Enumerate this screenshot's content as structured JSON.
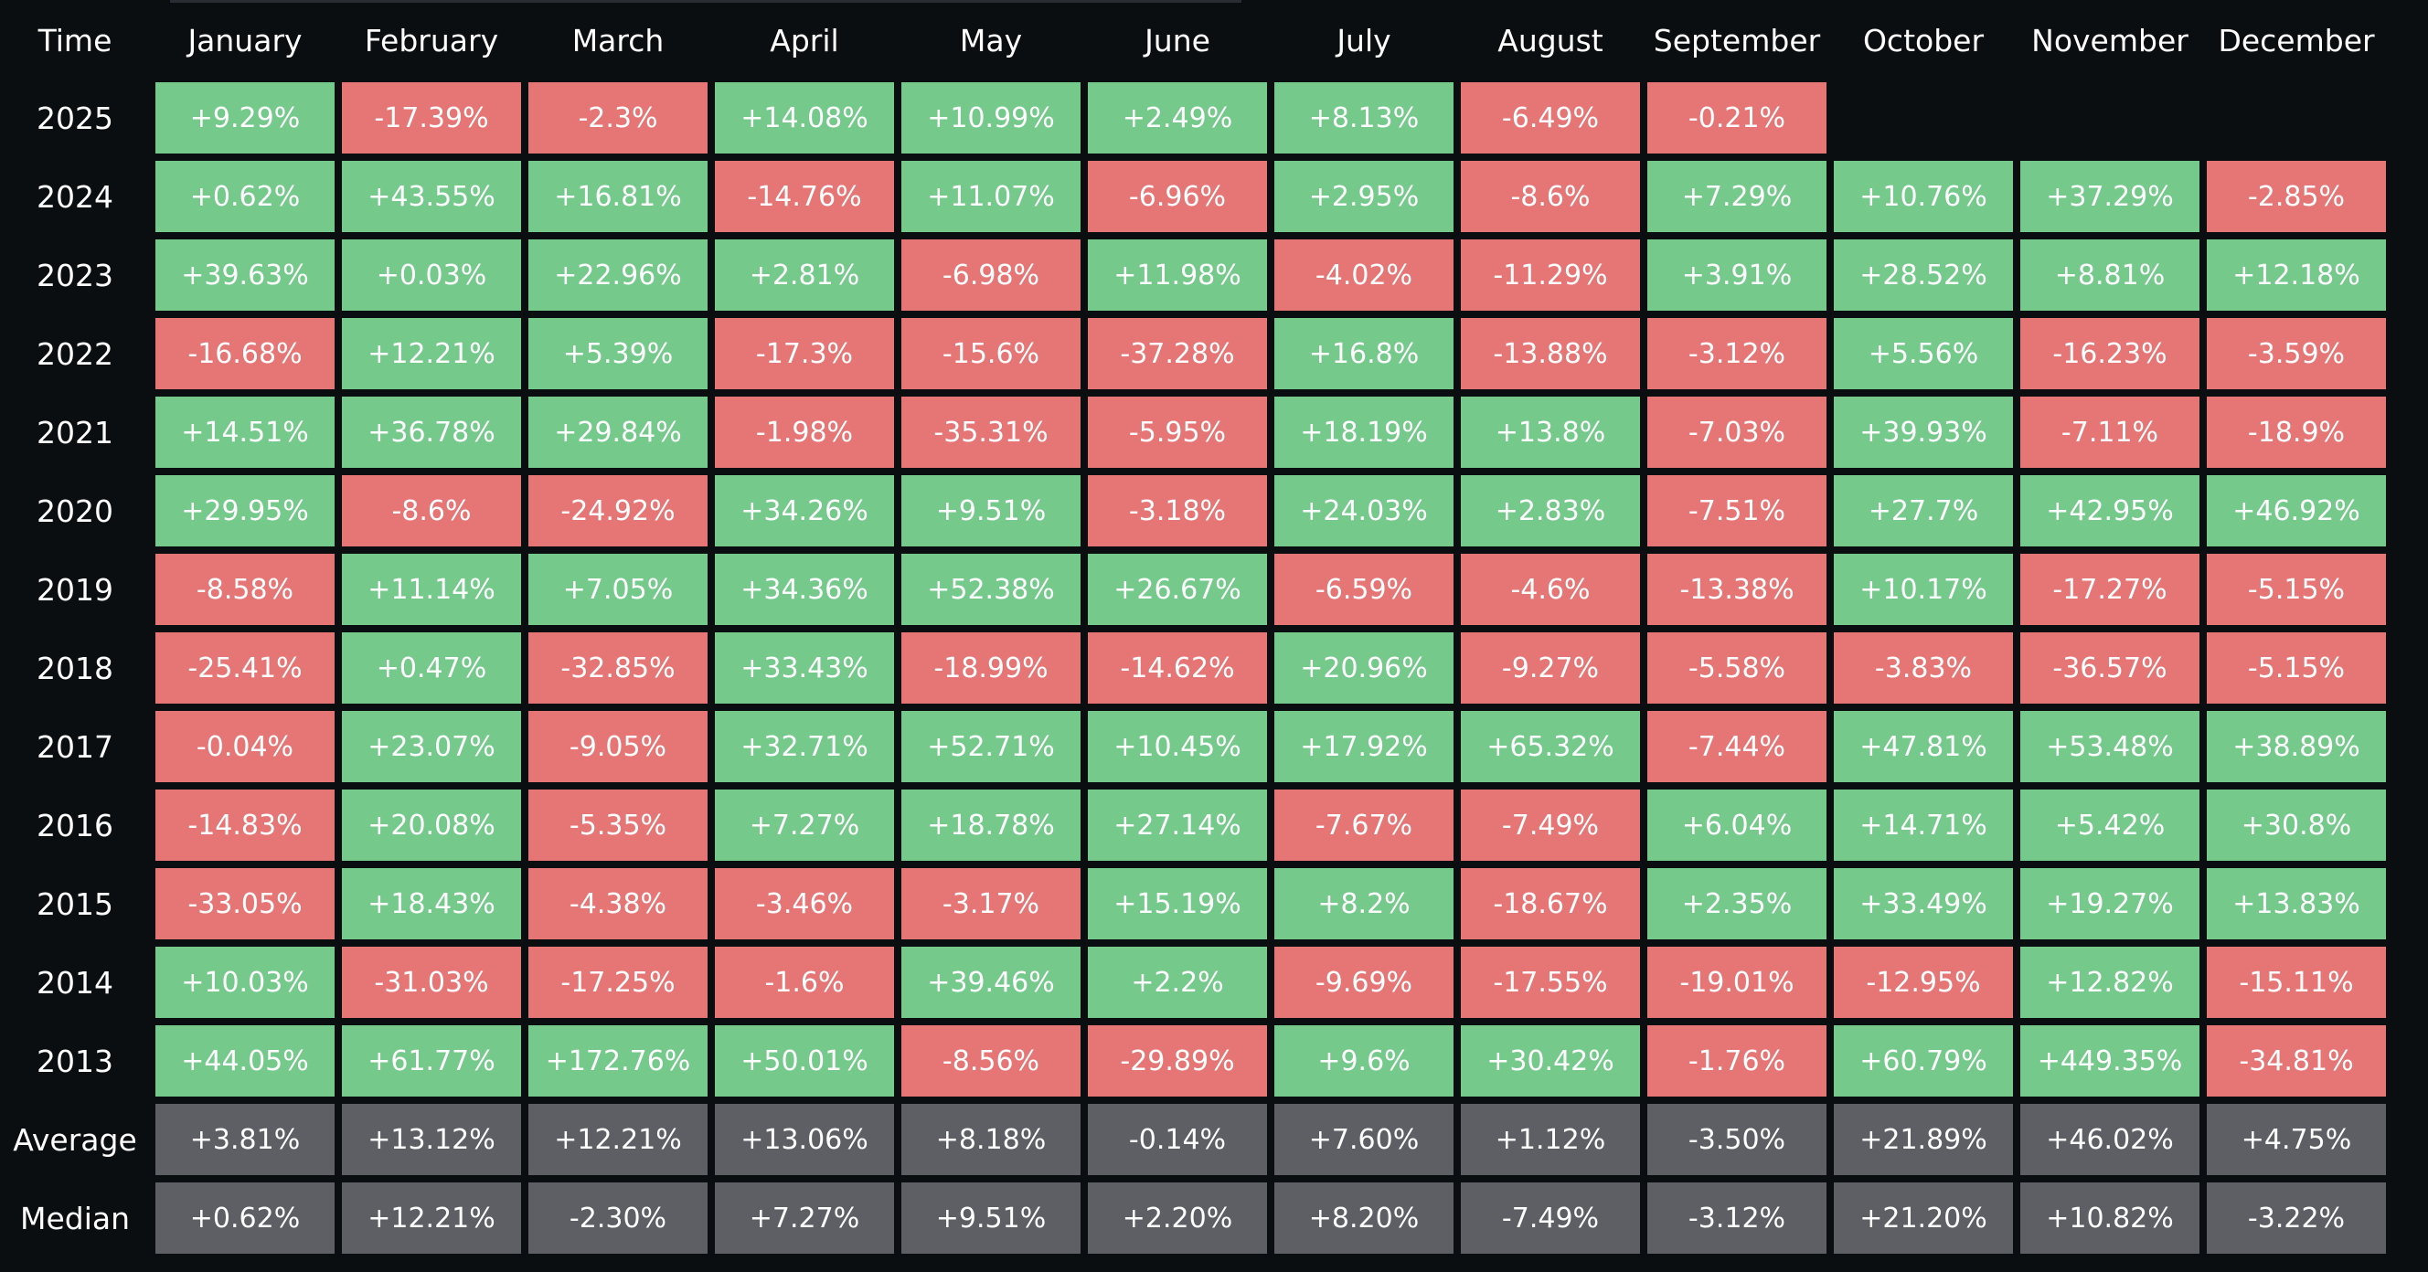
{
  "chart_data": {
    "type": "table",
    "corner_label": "Time",
    "columns": [
      "January",
      "February",
      "March",
      "April",
      "May",
      "June",
      "July",
      "August",
      "September",
      "October",
      "November",
      "December"
    ],
    "colors": {
      "positive": "#74c98b",
      "negative": "#e67676",
      "stat": "#5d5f64",
      "background": "#0b0e11"
    },
    "rows": [
      {
        "label": "2025",
        "kind": "year",
        "values": [
          "+9.29%",
          "-17.39%",
          "-2.3%",
          "+14.08%",
          "+10.99%",
          "+2.49%",
          "+8.13%",
          "-6.49%",
          "-0.21%",
          "",
          "",
          ""
        ]
      },
      {
        "label": "2024",
        "kind": "year",
        "values": [
          "+0.62%",
          "+43.55%",
          "+16.81%",
          "-14.76%",
          "+11.07%",
          "-6.96%",
          "+2.95%",
          "-8.6%",
          "+7.29%",
          "+10.76%",
          "+37.29%",
          "-2.85%"
        ]
      },
      {
        "label": "2023",
        "kind": "year",
        "values": [
          "+39.63%",
          "+0.03%",
          "+22.96%",
          "+2.81%",
          "-6.98%",
          "+11.98%",
          "-4.02%",
          "-11.29%",
          "+3.91%",
          "+28.52%",
          "+8.81%",
          "+12.18%"
        ]
      },
      {
        "label": "2022",
        "kind": "year",
        "values": [
          "-16.68%",
          "+12.21%",
          "+5.39%",
          "-17.3%",
          "-15.6%",
          "-37.28%",
          "+16.8%",
          "-13.88%",
          "-3.12%",
          "+5.56%",
          "-16.23%",
          "-3.59%"
        ]
      },
      {
        "label": "2021",
        "kind": "year",
        "values": [
          "+14.51%",
          "+36.78%",
          "+29.84%",
          "-1.98%",
          "-35.31%",
          "-5.95%",
          "+18.19%",
          "+13.8%",
          "-7.03%",
          "+39.93%",
          "-7.11%",
          "-18.9%"
        ]
      },
      {
        "label": "2020",
        "kind": "year",
        "values": [
          "+29.95%",
          "-8.6%",
          "-24.92%",
          "+34.26%",
          "+9.51%",
          "-3.18%",
          "+24.03%",
          "+2.83%",
          "-7.51%",
          "+27.7%",
          "+42.95%",
          "+46.92%"
        ]
      },
      {
        "label": "2019",
        "kind": "year",
        "values": [
          "-8.58%",
          "+11.14%",
          "+7.05%",
          "+34.36%",
          "+52.38%",
          "+26.67%",
          "-6.59%",
          "-4.6%",
          "-13.38%",
          "+10.17%",
          "-17.27%",
          "-5.15%"
        ]
      },
      {
        "label": "2018",
        "kind": "year",
        "values": [
          "-25.41%",
          "+0.47%",
          "-32.85%",
          "+33.43%",
          "-18.99%",
          "-14.62%",
          "+20.96%",
          "-9.27%",
          "-5.58%",
          "-3.83%",
          "-36.57%",
          "-5.15%"
        ]
      },
      {
        "label": "2017",
        "kind": "year",
        "values": [
          "-0.04%",
          "+23.07%",
          "-9.05%",
          "+32.71%",
          "+52.71%",
          "+10.45%",
          "+17.92%",
          "+65.32%",
          "-7.44%",
          "+47.81%",
          "+53.48%",
          "+38.89%"
        ]
      },
      {
        "label": "2016",
        "kind": "year",
        "values": [
          "-14.83%",
          "+20.08%",
          "-5.35%",
          "+7.27%",
          "+18.78%",
          "+27.14%",
          "-7.67%",
          "-7.49%",
          "+6.04%",
          "+14.71%",
          "+5.42%",
          "+30.8%"
        ]
      },
      {
        "label": "2015",
        "kind": "year",
        "values": [
          "-33.05%",
          "+18.43%",
          "-4.38%",
          "-3.46%",
          "-3.17%",
          "+15.19%",
          "+8.2%",
          "-18.67%",
          "+2.35%",
          "+33.49%",
          "+19.27%",
          "+13.83%"
        ]
      },
      {
        "label": "2014",
        "kind": "year",
        "values": [
          "+10.03%",
          "-31.03%",
          "-17.25%",
          "-1.6%",
          "+39.46%",
          "+2.2%",
          "-9.69%",
          "-17.55%",
          "-19.01%",
          "-12.95%",
          "+12.82%",
          "-15.11%"
        ]
      },
      {
        "label": "2013",
        "kind": "year",
        "values": [
          "+44.05%",
          "+61.77%",
          "+172.76%",
          "+50.01%",
          "-8.56%",
          "-29.89%",
          "+9.6%",
          "+30.42%",
          "-1.76%",
          "+60.79%",
          "+449.35%",
          "-34.81%"
        ]
      },
      {
        "label": "Average",
        "kind": "stat",
        "values": [
          "+3.81%",
          "+13.12%",
          "+12.21%",
          "+13.06%",
          "+8.18%",
          "-0.14%",
          "+7.60%",
          "+1.12%",
          "-3.50%",
          "+21.89%",
          "+46.02%",
          "+4.75%"
        ]
      },
      {
        "label": "Median",
        "kind": "stat",
        "values": [
          "+0.62%",
          "+12.21%",
          "-2.30%",
          "+7.27%",
          "+9.51%",
          "+2.20%",
          "+8.20%",
          "-7.49%",
          "-3.12%",
          "+21.20%",
          "+10.82%",
          "-3.22%"
        ]
      }
    ]
  }
}
